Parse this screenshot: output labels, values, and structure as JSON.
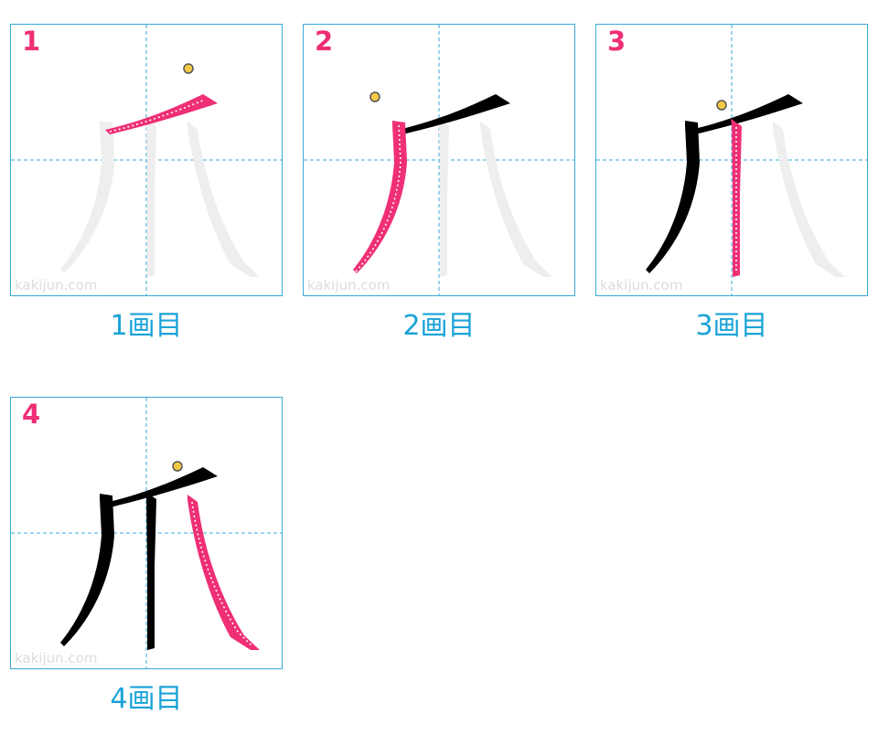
{
  "character": "爪",
  "watermark": "kakijun.com",
  "colors": {
    "border": "#39a9d9",
    "guide": "#39a9d9",
    "stroke_done": "#000000",
    "stroke_current": "#ef2f76",
    "stroke_ghost": "#eeeeee",
    "number": "#ef2f76",
    "caption": "#1aa3d8"
  },
  "panels": [
    {
      "number": "1",
      "caption": "1画目"
    },
    {
      "number": "2",
      "caption": "2画目"
    },
    {
      "number": "3",
      "caption": "3画目"
    },
    {
      "number": "4",
      "caption": "4画目"
    }
  ]
}
